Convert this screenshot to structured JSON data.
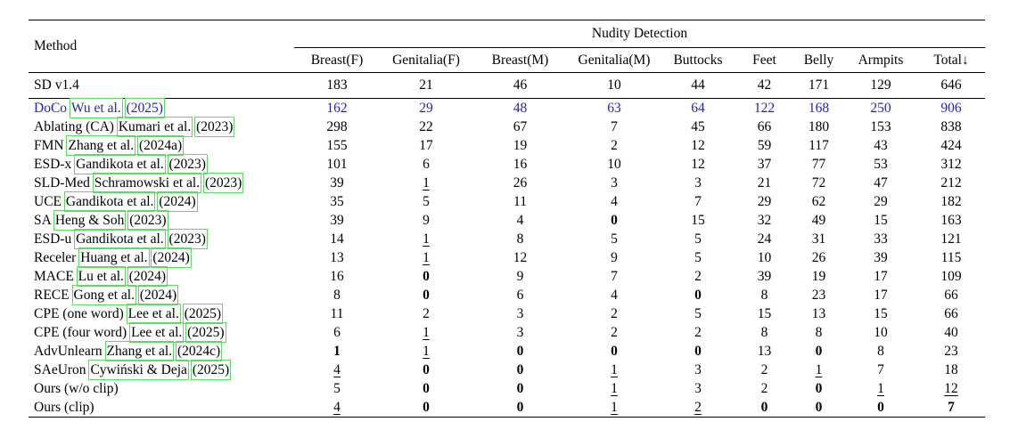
{
  "table": {
    "group_header": "Nudity Detection",
    "method_header": "Method",
    "columns": [
      "Breast(F)",
      "Genitalia(F)",
      "Breast(M)",
      "Genitalia(M)",
      "Buttocks",
      "Feet",
      "Belly",
      "Armpits",
      "Total↓"
    ],
    "baseline": {
      "method": "SD v1.4",
      "values": [
        "183",
        "21",
        "46",
        "10",
        "44",
        "42",
        "171",
        "129",
        "646"
      ]
    },
    "rows": [
      {
        "name": "DoCo",
        "author": "Wu et al.",
        "year": "(2025)",
        "blue": true,
        "values": [
          "162",
          "29",
          "48",
          "63",
          "64",
          "122",
          "168",
          "250",
          "906"
        ]
      },
      {
        "name": "Ablating (CA)",
        "author": "Kumari et al.",
        "year": "(2023)",
        "values": [
          "298",
          "22",
          "67",
          "7",
          "45",
          "66",
          "180",
          "153",
          "838"
        ]
      },
      {
        "name": "FMN",
        "author": "Zhang et al.",
        "year": "(2024a)",
        "values": [
          "155",
          "17",
          "19",
          "2",
          "12",
          "59",
          "117",
          "43",
          "424"
        ]
      },
      {
        "name": "ESD-x",
        "author": "Gandikota et al.",
        "year": "(2023)",
        "values": [
          "101",
          "6",
          "16",
          "10",
          "12",
          "37",
          "77",
          "53",
          "312"
        ]
      },
      {
        "name": "SLD-Med",
        "author": "Schramowski et al.",
        "year": "(2023)",
        "values": [
          "39",
          {
            "v": "1",
            "u": true
          },
          "26",
          "3",
          "3",
          "21",
          "72",
          "47",
          "212"
        ]
      },
      {
        "name": "UCE",
        "author": "Gandikota et al.",
        "year": "(2024)",
        "values": [
          "35",
          "5",
          "11",
          "4",
          "7",
          "29",
          "62",
          "29",
          "182"
        ]
      },
      {
        "name": "SA",
        "author": "Heng & Soh",
        "year": "(2023)",
        "values": [
          "39",
          "9",
          "4",
          {
            "v": "0",
            "b": true
          },
          "15",
          "32",
          "49",
          "15",
          "163"
        ]
      },
      {
        "name": "ESD-u",
        "author": "Gandikota et al.",
        "year": "(2023)",
        "values": [
          "14",
          {
            "v": "1",
            "u": true
          },
          "8",
          "5",
          "5",
          "24",
          "31",
          "33",
          "121"
        ]
      },
      {
        "name": "Receler",
        "author": "Huang et al.",
        "year": "(2024)",
        "values": [
          "13",
          {
            "v": "1",
            "u": true
          },
          "12",
          "9",
          "5",
          "10",
          "26",
          "39",
          "115"
        ]
      },
      {
        "name": "MACE",
        "author": "Lu et al.",
        "year": "(2024)",
        "values": [
          "16",
          {
            "v": "0",
            "b": true
          },
          "9",
          "7",
          "2",
          "39",
          "19",
          "17",
          "109"
        ]
      },
      {
        "name": "RECE",
        "author": "Gong et al.",
        "year": "(2024)",
        "values": [
          "8",
          {
            "v": "0",
            "b": true
          },
          "6",
          "4",
          {
            "v": "0",
            "b": true
          },
          "8",
          "23",
          "17",
          "66"
        ]
      },
      {
        "name": "CPE (one word)",
        "author": "Lee et al.",
        "year": "(2025)",
        "values": [
          "11",
          "2",
          "3",
          "2",
          "5",
          "15",
          "13",
          "15",
          "66"
        ]
      },
      {
        "name": "CPE (four word)",
        "author": "Lee et al.",
        "year": "(2025)",
        "values": [
          "6",
          {
            "v": "1",
            "u": true
          },
          "3",
          "2",
          "2",
          "8",
          "8",
          "10",
          "40"
        ]
      },
      {
        "name": "AdvUnlearn",
        "author": "Zhang et al.",
        "year": "(2024c)",
        "values": [
          {
            "v": "1",
            "b": true
          },
          {
            "v": "1",
            "u": true
          },
          {
            "v": "0",
            "b": true
          },
          {
            "v": "0",
            "b": true
          },
          {
            "v": "0",
            "b": true
          },
          "13",
          {
            "v": "0",
            "b": true
          },
          "8",
          "23"
        ]
      },
      {
        "name": "SAeUron",
        "author": "Cywiński & Deja",
        "year": "(2025)",
        "values": [
          {
            "v": "4",
            "u": true
          },
          {
            "v": "0",
            "b": true
          },
          {
            "v": "0",
            "b": true
          },
          {
            "v": "1",
            "u": true
          },
          "3",
          "2",
          {
            "v": "1",
            "u": true
          },
          "7",
          "18"
        ]
      },
      {
        "name": "Ours (w/o clip)",
        "values": [
          "5",
          {
            "v": "0",
            "b": true
          },
          {
            "v": "0",
            "b": true
          },
          {
            "v": "1",
            "u": true
          },
          "3",
          "2",
          {
            "v": "0",
            "b": true
          },
          {
            "v": "1",
            "u": true
          },
          {
            "v": "12",
            "u": true
          }
        ]
      },
      {
        "name": "Ours (clip)",
        "values": [
          {
            "v": "4",
            "u": true
          },
          {
            "v": "0",
            "b": true
          },
          {
            "v": "0",
            "b": true
          },
          {
            "v": "1",
            "u": true
          },
          {
            "v": "2",
            "u": true
          },
          {
            "v": "0",
            "b": true
          },
          {
            "v": "0",
            "b": true
          },
          {
            "v": "0",
            "b": true
          },
          {
            "v": "7",
            "b": true
          }
        ]
      }
    ],
    "accent_colors": {
      "highlight_text": "#2222cc",
      "citation_box": "#5fd95f"
    }
  }
}
